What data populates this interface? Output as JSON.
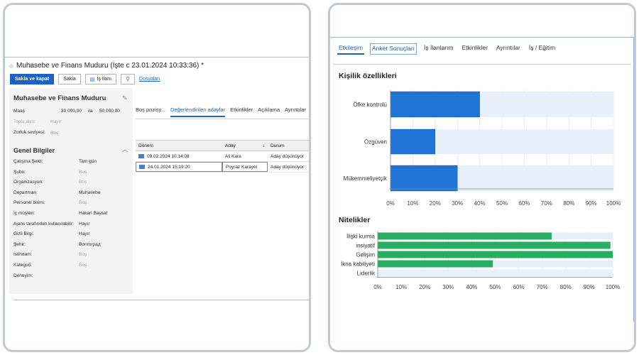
{
  "left": {
    "title": "Muhasebe ve Finans Muduru (İşte c 23.01.2024 10:33:36) *",
    "toolbar": {
      "save_close": "Sakla ve kapat",
      "save": "Sakla",
      "job_posting": "İş İlanı",
      "files": "Dosyaları"
    },
    "form": {
      "title": "Muhasebe ve Finans Muduru",
      "salary_label": "Maaş",
      "salary_from": "30 000,00",
      "salary_sep": "ila",
      "salary_to": "50 000,00",
      "bulk_label": "Toplu alım:",
      "bulk_value": "Hayır",
      "difficulty_label": "Zorluk seviyesi:",
      "difficulty_value": "Boş",
      "section_title": "Genel Bilgiler",
      "fields": [
        {
          "label": "Çalışma Şekli:",
          "value": "Tam gün",
          "muted": false
        },
        {
          "label": "Şube:",
          "value": "Boş",
          "muted": true
        },
        {
          "label": "Organizasyon:",
          "value": "Boş",
          "muted": true
        },
        {
          "label": "Departman:",
          "value": "Muhasebe",
          "muted": false
        },
        {
          "label": "Personel birimi:",
          "value": "Boş",
          "muted": true
        },
        {
          "label": "İç müşteri:",
          "value": "Hakan Baysal",
          "muted": false
        },
        {
          "label": "Ajans tarafından kullanılabilir:",
          "value": "Hayır",
          "muted": false
        },
        {
          "label": "Gizli Bilgi:",
          "value": "Hayır",
          "muted": false
        },
        {
          "label": "Şehir:",
          "value": "Bonrorpaд",
          "muted": false
        },
        {
          "label": "İstihdam:",
          "value": "Boş",
          "muted": true
        },
        {
          "label": "Kategori:",
          "value": "Boş",
          "muted": true
        },
        {
          "label": "Deneyim:",
          "value": "",
          "muted": false
        }
      ]
    },
    "tabs": [
      "Boş pozisy...",
      "Değerlendirilen adaylar",
      "Etkinlikler",
      "Açıklama",
      "Ayrıntılar"
    ],
    "active_tab": 1,
    "grid": {
      "headers": [
        "Dönem",
        "Aday",
        "Durum"
      ],
      "sort_icon": "↓",
      "rows": [
        {
          "date": "09.02.2024 10:14:08",
          "candidate": "Ali Kara",
          "status": "Aday düşünüyor"
        },
        {
          "date": "24.01.2024 15:19:20",
          "candidate": "Poyraz Karayel",
          "status": "Aday düşünüyor"
        }
      ]
    }
  },
  "right": {
    "tabs": [
      "Etkileşim",
      "Anket Sonuçları",
      "İş İlanlarım",
      "Etkinlikler",
      "Ayrıntılar",
      "İş / Eğitim"
    ],
    "colors": {
      "blue": "#1f74d6",
      "green": "#27ae60",
      "track": "#e8f1fb"
    }
  },
  "chart_data": [
    {
      "type": "bar",
      "orientation": "horizontal",
      "title": "Kişilik özellikleri",
      "categories": [
        "Öfke kontrolü",
        "Özgüven",
        "Mükemmeliyetçik"
      ],
      "values": [
        40,
        20,
        30
      ],
      "xlim": [
        0,
        100
      ],
      "xticks": [
        "0%",
        "10%",
        "20%",
        "30%",
        "40%",
        "50%",
        "60%",
        "70%",
        "80%",
        "90%",
        "100%"
      ],
      "color": "#1f74d6"
    },
    {
      "type": "bar",
      "orientation": "horizontal",
      "title": "Nitelikler",
      "categories": [
        "İlişki kurma",
        "insiyatif",
        "Gelişim",
        "İkna kabiliyeti",
        "Liderlik"
      ],
      "values": [
        74,
        99,
        100,
        49,
        0
      ],
      "xlim": [
        0,
        100
      ],
      "xticks": [
        "0%",
        "10%",
        "20%",
        "30%",
        "40%",
        "50%",
        "60%",
        "70%",
        "80%",
        "90%",
        "100%"
      ],
      "color": "#27ae60"
    }
  ]
}
